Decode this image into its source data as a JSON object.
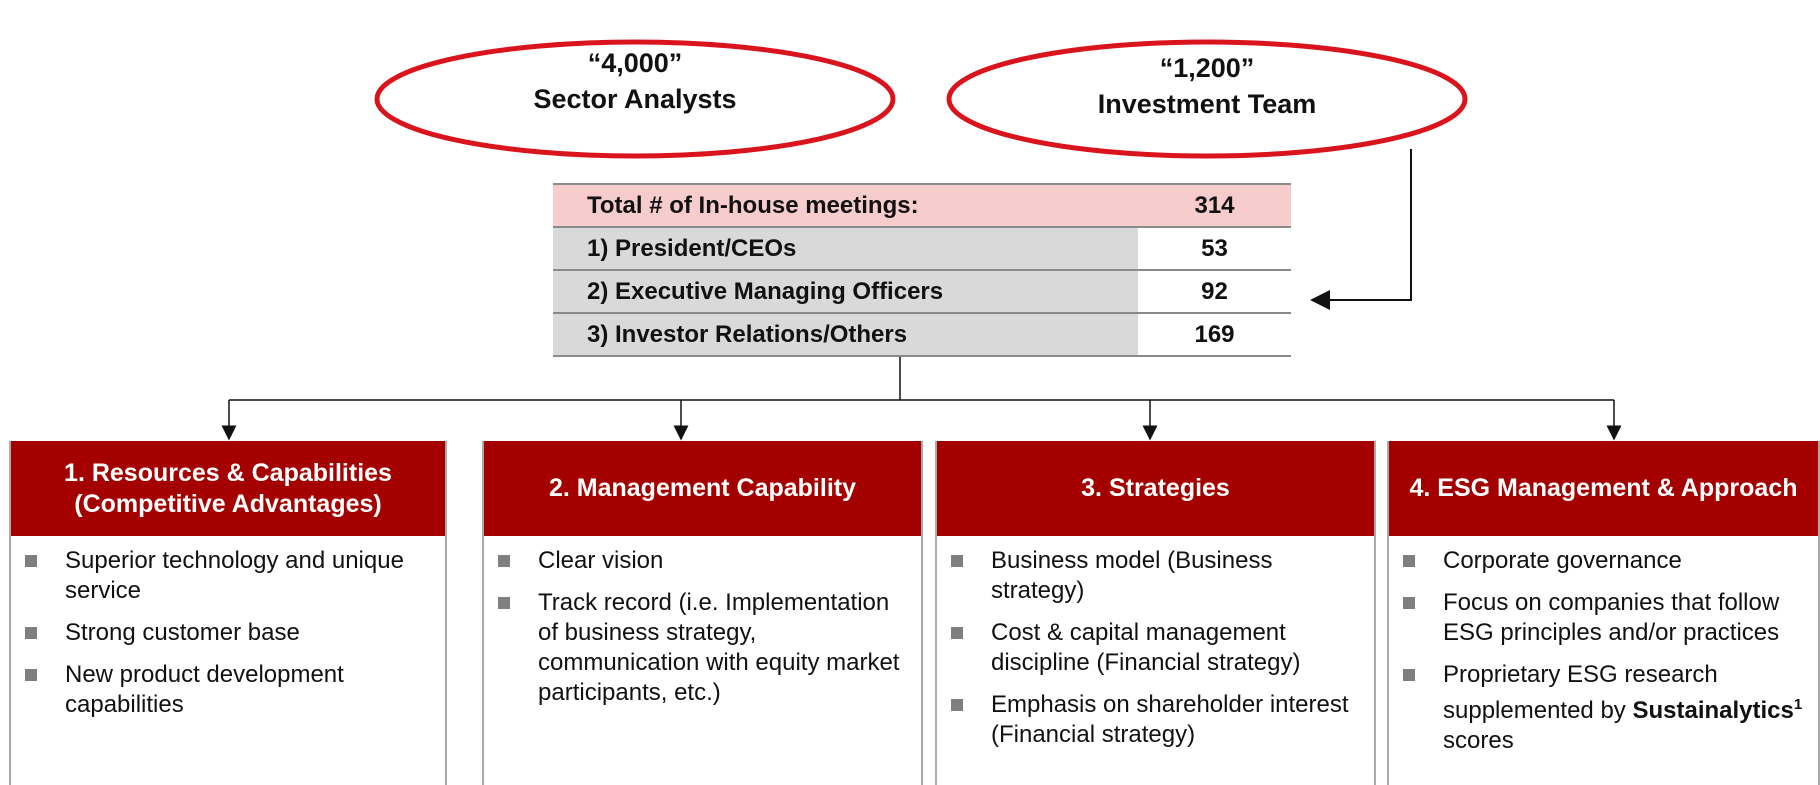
{
  "ovals": [
    {
      "value": "“4,000”",
      "label": "Sector Analysts"
    },
    {
      "value": "“1,200”",
      "label": "Investment Team"
    }
  ],
  "table": {
    "header": [
      "Total # of In-house meetings:",
      "314"
    ],
    "rows": [
      [
        "1) President/CEOs",
        "53"
      ],
      [
        "2) Executive Managing Officers",
        "92"
      ],
      [
        "3) Investor Relations/Others",
        "169"
      ]
    ]
  },
  "columns": [
    {
      "title": "1. Resources & Capabilities (Competitive Advantages)",
      "bullets": [
        "Superior technology and unique service",
        "Strong customer base",
        "New product development capabilities"
      ]
    },
    {
      "title": "2. Management Capability",
      "bullets": [
        "Clear vision",
        "Track record (i.e. Implementation of business strategy, communication with equity market participants, etc.)"
      ]
    },
    {
      "title": "3. Strategies",
      "bullets": [
        "Business model (Business strategy)",
        "Cost & capital management discipline (Financial strategy)",
        "Emphasis on shareholder interest (Financial strategy)"
      ]
    },
    {
      "title": "4. ESG Management & Approach",
      "bullets": [
        "Corporate governance",
        "Focus on companies that follow ESG principles and/or practices"
      ],
      "rich_bullet": {
        "text": "Proprietary ESG research supplemented by",
        "bold": "Sustainalytics",
        "sup": "1",
        "post": "scores"
      }
    }
  ]
}
